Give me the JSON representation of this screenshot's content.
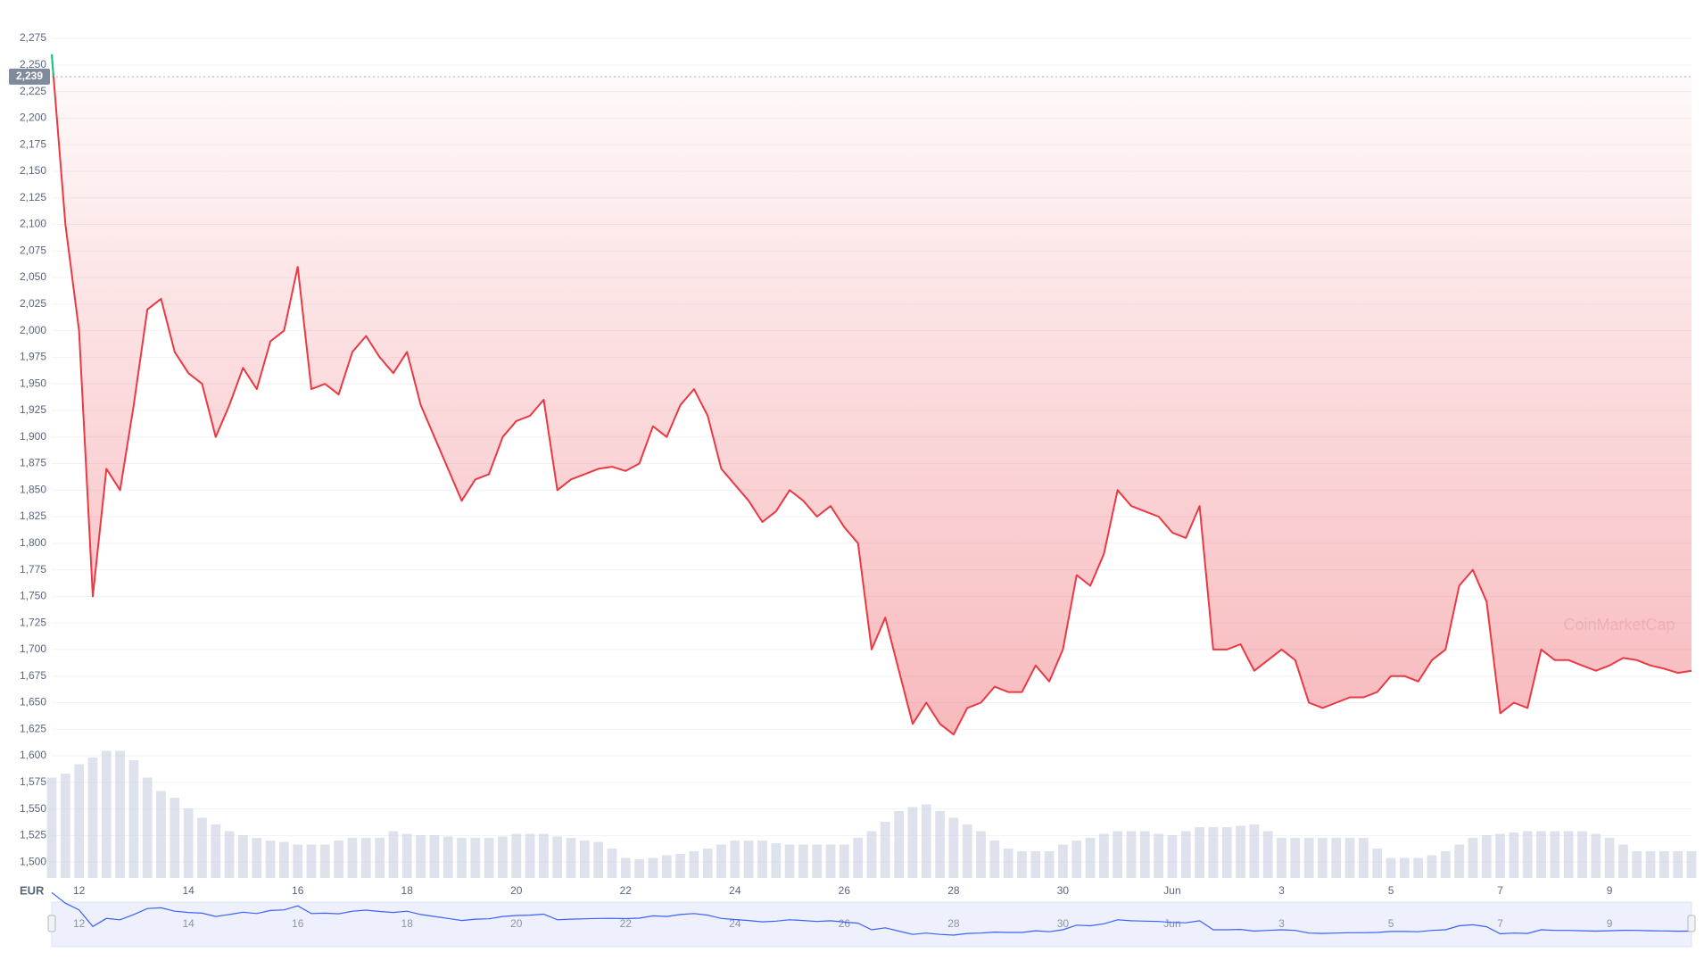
{
  "chart_data": {
    "type": "line",
    "currency": "EUR",
    "watermark": "CoinMarketCap",
    "color": "#ea3943",
    "up_color": "#16c784",
    "volume_color": "#cfd6e4",
    "navigator_color": "#3861fb",
    "grid": true,
    "current_price": {
      "value": 2239,
      "label": "2,239"
    },
    "categories": [
      null,
      null,
      "12",
      null,
      null,
      null,
      null,
      null,
      null,
      null,
      "14",
      null,
      null,
      null,
      null,
      null,
      null,
      null,
      "16",
      null,
      null,
      null,
      null,
      null,
      null,
      null,
      "18",
      null,
      null,
      null,
      null,
      null,
      null,
      null,
      "20",
      null,
      null,
      null,
      null,
      null,
      null,
      null,
      "22",
      null,
      null,
      null,
      null,
      null,
      null,
      null,
      "24",
      null,
      null,
      null,
      null,
      null,
      null,
      null,
      "26",
      null,
      null,
      null,
      null,
      null,
      null,
      null,
      "28",
      null,
      null,
      null,
      null,
      null,
      null,
      null,
      "30",
      null,
      null,
      null,
      null,
      null,
      null,
      null,
      "Jun",
      null,
      null,
      null,
      null,
      null,
      null,
      null,
      "3",
      null,
      null,
      null,
      null,
      null,
      null,
      null,
      "5",
      null,
      null,
      null,
      null,
      null,
      null,
      null,
      "7",
      null,
      null,
      null,
      null,
      null,
      null,
      null,
      "9",
      null,
      null,
      null,
      null,
      null,
      null
    ],
    "values": [
      2260,
      2100,
      2000,
      1750,
      1870,
      1850,
      1930,
      2020,
      2030,
      1980,
      1960,
      1950,
      1900,
      1930,
      1965,
      1945,
      1990,
      2000,
      2060,
      1945,
      1950,
      1940,
      1980,
      1995,
      1975,
      1960,
      1980,
      1930,
      1900,
      1870,
      1840,
      1860,
      1865,
      1900,
      1915,
      1920,
      1935,
      1850,
      1860,
      1865,
      1870,
      1872,
      1868,
      1875,
      1910,
      1900,
      1930,
      1945,
      1920,
      1870,
      1855,
      1840,
      1820,
      1830,
      1850,
      1840,
      1825,
      1835,
      1815,
      1800,
      1700,
      1730,
      1680,
      1630,
      1650,
      1630,
      1620,
      1645,
      1650,
      1665,
      1660,
      1660,
      1685,
      1670,
      1700,
      1770,
      1760,
      1790,
      1850,
      1835,
      1830,
      1825,
      1810,
      1805,
      1835,
      1700,
      1700,
      1705,
      1680,
      1690,
      1700,
      1690,
      1650,
      1645,
      1650,
      1655,
      1655,
      1660,
      1675,
      1675,
      1670,
      1690,
      1700,
      1760,
      1775,
      1745,
      1640,
      1650,
      1645,
      1700,
      1690,
      1690,
      1685,
      1680,
      1685,
      1692,
      1690,
      1685,
      1682,
      1678,
      1680
    ],
    "volume": [
      75,
      78,
      85,
      90,
      95,
      95,
      88,
      75,
      65,
      60,
      52,
      45,
      40,
      35,
      32,
      30,
      28,
      27,
      25,
      25,
      25,
      28,
      30,
      30,
      30,
      35,
      33,
      32,
      32,
      31,
      30,
      30,
      30,
      31,
      33,
      33,
      33,
      31,
      30,
      28,
      27,
      22,
      15,
      14,
      15,
      17,
      18,
      20,
      22,
      25,
      28,
      28,
      28,
      26,
      25,
      25,
      25,
      25,
      25,
      30,
      35,
      42,
      50,
      53,
      55,
      50,
      45,
      40,
      35,
      28,
      22,
      20,
      20,
      20,
      25,
      28,
      30,
      33,
      35,
      35,
      35,
      33,
      32,
      35,
      38,
      38,
      38,
      39,
      40,
      35,
      30,
      30,
      30,
      30,
      30,
      30,
      30,
      22,
      15,
      15,
      15,
      17,
      20,
      25,
      30,
      32,
      33,
      34,
      35,
      35,
      35,
      35,
      35,
      33,
      30,
      25,
      20,
      20,
      20,
      20,
      20
    ],
    "vlim": [
      0,
      100
    ],
    "ylim": [
      1485,
      2291
    ],
    "yticks": [
      {
        "value": 1500,
        "label": "1,500"
      },
      {
        "value": 1525,
        "label": "1,525"
      },
      {
        "value": 1550,
        "label": "1,550"
      },
      {
        "value": 1575,
        "label": "1,575"
      },
      {
        "value": 1600,
        "label": "1,600"
      },
      {
        "value": 1625,
        "label": "1,625"
      },
      {
        "value": 1650,
        "label": "1,650"
      },
      {
        "value": 1675,
        "label": "1,675"
      },
      {
        "value": 1700,
        "label": "1,700"
      },
      {
        "value": 1725,
        "label": "1,725"
      },
      {
        "value": 1750,
        "label": "1,750"
      },
      {
        "value": 1775,
        "label": "1,775"
      },
      {
        "value": 1800,
        "label": "1,800"
      },
      {
        "value": 1825,
        "label": "1,825"
      },
      {
        "value": 1850,
        "label": "1,850"
      },
      {
        "value": 1875,
        "label": "1,875"
      },
      {
        "value": 1900,
        "label": "1,900"
      },
      {
        "value": 1925,
        "label": "1,925"
      },
      {
        "value": 1950,
        "label": "1,950"
      },
      {
        "value": 1975,
        "label": "1,975"
      },
      {
        "value": 2000,
        "label": "2,000"
      },
      {
        "value": 2025,
        "label": "2,025"
      },
      {
        "value": 2050,
        "label": "2,050"
      },
      {
        "value": 2075,
        "label": "2,075"
      },
      {
        "value": 2100,
        "label": "2,100"
      },
      {
        "value": 2125,
        "label": "2,125"
      },
      {
        "value": 2150,
        "label": "2,150"
      },
      {
        "value": 2175,
        "label": "2,175"
      },
      {
        "value": 2200,
        "label": "2,200"
      },
      {
        "value": 2225,
        "label": "2,225"
      },
      {
        "value": 2250,
        "label": "2,250"
      },
      {
        "value": 2275,
        "label": "2,275"
      }
    ]
  }
}
